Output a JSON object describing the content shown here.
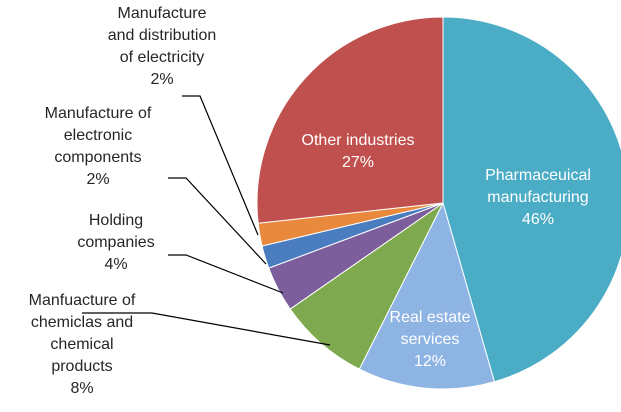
{
  "chart_data": {
    "type": "pie",
    "title": "",
    "slices": [
      {
        "label": [
          "Pharmaceuical",
          "manufacturing"
        ],
        "value": 46,
        "value_label": "46%",
        "color": "#4BACC6",
        "label_placement": "inside",
        "label_color": "#ffffff"
      },
      {
        "label": [
          "Real estate",
          "services"
        ],
        "value": 12,
        "value_label": "12%",
        "color": "#8EB4E3",
        "label_placement": "inside",
        "label_color": "#ffffff"
      },
      {
        "label": [
          "Manfuacture of",
          "chemiclas and",
          "chemical",
          "products"
        ],
        "value": 8,
        "value_label": "8%",
        "color": "#7FA94E",
        "label_placement": "outside",
        "label_color": "#262626"
      },
      {
        "label": [
          "Holding",
          "companies"
        ],
        "value": 4,
        "value_label": "4%",
        "color": "#7B5E9B",
        "label_placement": "outside",
        "label_color": "#262626"
      },
      {
        "label": [
          "Manufacture of",
          "electronic",
          "components"
        ],
        "value": 2,
        "value_label": "2%",
        "color": "#4A7CC0",
        "label_placement": "outside",
        "label_color": "#262626"
      },
      {
        "label": [
          "Manufacture",
          "and distribution",
          "of electricity"
        ],
        "value": 2,
        "value_label": "2%",
        "color": "#E8893D",
        "label_placement": "outside",
        "label_color": "#262626"
      },
      {
        "label": [
          "Other industries"
        ],
        "value": 27,
        "value_label": "27%",
        "color": "#C0504D",
        "label_placement": "inside",
        "label_color": "#ffffff"
      }
    ]
  }
}
